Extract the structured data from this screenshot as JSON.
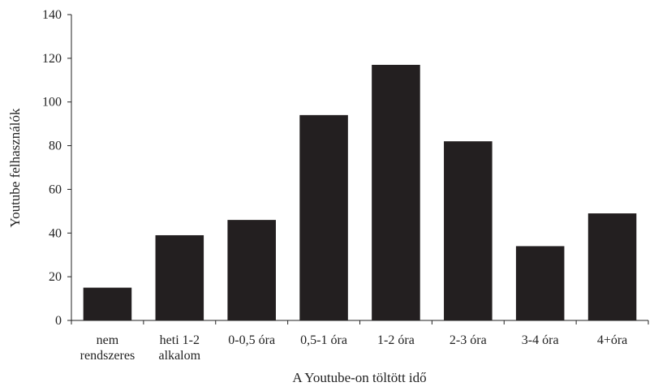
{
  "chart_data": {
    "type": "bar",
    "categories": [
      [
        "nem",
        "rendszeres"
      ],
      [
        "heti 1-2",
        "alkalom"
      ],
      [
        "0-0,5 óra"
      ],
      [
        "0,5-1 óra"
      ],
      [
        "1-2 óra"
      ],
      [
        "2-3 óra"
      ],
      [
        "3-4 óra"
      ],
      [
        "4+óra"
      ]
    ],
    "values": [
      15,
      39,
      46,
      94,
      117,
      82,
      34,
      49
    ],
    "xlabel": "A Youtube-on töltött idő",
    "ylabel": "Youtube felhasználók",
    "ylim": [
      0,
      140
    ],
    "yticks": [
      0,
      20,
      40,
      60,
      80,
      100,
      120,
      140
    ],
    "grid": false,
    "colors": {
      "bar": "#231f20",
      "axis": "#222222"
    }
  }
}
